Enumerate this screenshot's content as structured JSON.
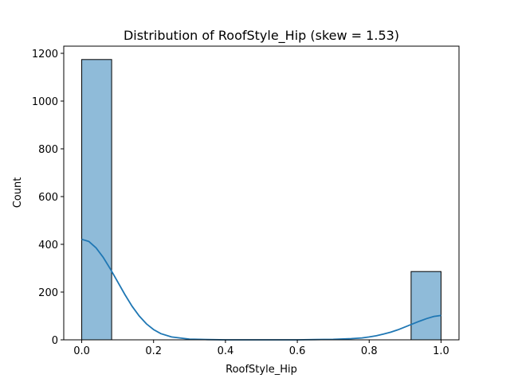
{
  "chart_data": {
    "type": "bar",
    "title": "Distribution of RoofStyle_Hip (skew = 1.53)",
    "xlabel": "RoofStyle_Hip",
    "ylabel": "Count",
    "xlim": [
      -0.05,
      1.05
    ],
    "ylim": [
      0,
      1230
    ],
    "xticks": [
      0.0,
      0.2,
      0.4,
      0.6,
      0.8,
      1.0
    ],
    "xtick_labels": [
      "0.0",
      "0.2",
      "0.4",
      "0.6",
      "0.8",
      "1.0"
    ],
    "yticks": [
      0,
      200,
      400,
      600,
      800,
      1000,
      1200
    ],
    "ytick_labels": [
      "0",
      "200",
      "400",
      "600",
      "800",
      "1000",
      "1200"
    ],
    "bins": [
      {
        "x0": 0.0,
        "x1": 0.0833,
        "count": 1174
      },
      {
        "x0": 0.9167,
        "x1": 1.0,
        "count": 286
      }
    ],
    "kde": {
      "x": [
        0.0,
        0.02,
        0.04,
        0.06,
        0.08,
        0.1,
        0.12,
        0.14,
        0.16,
        0.18,
        0.2,
        0.22,
        0.25,
        0.3,
        0.35,
        0.4,
        0.5,
        0.6,
        0.65,
        0.7,
        0.75,
        0.78,
        0.8,
        0.82,
        0.84,
        0.86,
        0.88,
        0.9,
        0.92,
        0.94,
        0.96,
        0.98,
        1.0
      ],
      "y": [
        421,
        412,
        385,
        345,
        296,
        243,
        190,
        141,
        100,
        67,
        43,
        26,
        12,
        3,
        1,
        0,
        0,
        0,
        1,
        2,
        5,
        8,
        12,
        17,
        24,
        32,
        42,
        54,
        66,
        78,
        89,
        98,
        102
      ]
    },
    "colors": {
      "bar_fill": "#8fbbd9",
      "bar_edge": "#000000",
      "kde_line": "#1f77b4"
    },
    "grid": false,
    "legend": "none"
  }
}
